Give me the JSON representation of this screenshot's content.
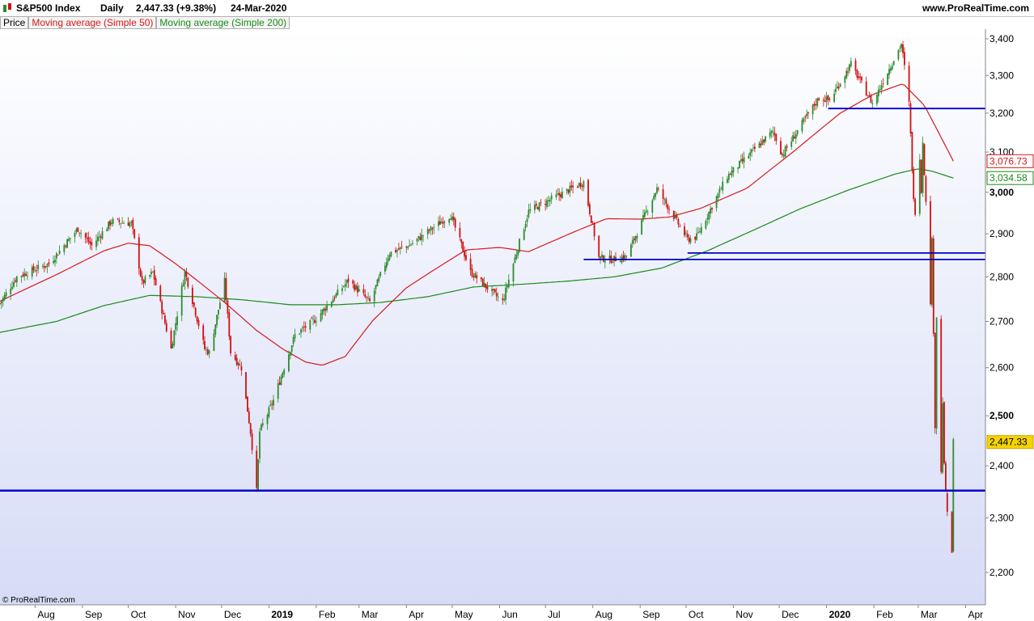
{
  "header": {
    "symbol": "S&P500 Index",
    "interval": "Daily",
    "last_change": "2,447.33 (+9.38%)",
    "date": "24-Mar-2020",
    "website": "www.ProRealTime.com"
  },
  "legend": [
    {
      "label": "Price",
      "color": "#000000"
    },
    {
      "label": "Moving average (Simple 50)",
      "color": "#d7191c"
    },
    {
      "label": "Moving average (Simple 200)",
      "color": "#1a8a1a"
    }
  ],
  "watermark": "© ProRealTime.com",
  "colors": {
    "up": "#2e8b2e",
    "down": "#d01010",
    "ma50": "#d7191c",
    "ma200": "#1a8a1a",
    "hline": "#0000cc"
  },
  "chart_data": {
    "type": "line",
    "y_scale": "log",
    "ylim": [
      2160,
      3450
    ],
    "x_range": [
      "2018-07-09",
      "2020-04-14"
    ],
    "y_ticks": [
      {
        "value": 2200,
        "label": "2,200"
      },
      {
        "value": 2300,
        "label": "2,300"
      },
      {
        "value": 2400,
        "label": "2,400"
      },
      {
        "value": 2500,
        "label": "2,500",
        "bold": true
      },
      {
        "value": 2600,
        "label": "2,600"
      },
      {
        "value": 2700,
        "label": "2,700"
      },
      {
        "value": 2800,
        "label": "2,800"
      },
      {
        "value": 2900,
        "label": "2,900"
      },
      {
        "value": 3000,
        "label": "3,000",
        "bold": true
      },
      {
        "value": 3100,
        "label": "3,100"
      },
      {
        "value": 3200,
        "label": "3,200"
      },
      {
        "value": 3300,
        "label": "3,300"
      },
      {
        "value": 3400,
        "label": "3,400"
      }
    ],
    "x_ticks": [
      {
        "date": "2018-08-01",
        "label": "Aug"
      },
      {
        "date": "2018-09-01",
        "label": "Sep"
      },
      {
        "date": "2018-10-01",
        "label": "Oct"
      },
      {
        "date": "2018-11-01",
        "label": "Nov"
      },
      {
        "date": "2018-12-01",
        "label": "Dec"
      },
      {
        "date": "2019-01-01",
        "label": "2019",
        "bold": true
      },
      {
        "date": "2019-02-01",
        "label": "Feb"
      },
      {
        "date": "2019-03-01",
        "label": "Mar"
      },
      {
        "date": "2019-04-01",
        "label": "Apr"
      },
      {
        "date": "2019-05-01",
        "label": "May"
      },
      {
        "date": "2019-06-01",
        "label": "Jun"
      },
      {
        "date": "2019-07-01",
        "label": "Jul"
      },
      {
        "date": "2019-08-01",
        "label": "Aug"
      },
      {
        "date": "2019-09-01",
        "label": "Sep"
      },
      {
        "date": "2019-10-01",
        "label": "Oct"
      },
      {
        "date": "2019-11-01",
        "label": "Nov"
      },
      {
        "date": "2019-12-01",
        "label": "Dec"
      },
      {
        "date": "2020-01-01",
        "label": "2020",
        "bold": true
      },
      {
        "date": "2020-02-01",
        "label": "Feb"
      },
      {
        "date": "2020-03-01",
        "label": "Mar"
      },
      {
        "date": "2020-04-01",
        "label": "Apr"
      }
    ],
    "price_anchors": [
      [
        "2018-07-09",
        2740
      ],
      [
        "2018-07-20",
        2800
      ],
      [
        "2018-08-10",
        2830
      ],
      [
        "2018-08-29",
        2912
      ],
      [
        "2018-09-07",
        2872
      ],
      [
        "2018-09-20",
        2930
      ],
      [
        "2018-10-03",
        2925
      ],
      [
        "2018-10-10",
        2785
      ],
      [
        "2018-10-17",
        2810
      ],
      [
        "2018-10-29",
        2640
      ],
      [
        "2018-11-07",
        2812
      ],
      [
        "2018-11-20",
        2640
      ],
      [
        "2018-11-23",
        2632
      ],
      [
        "2018-12-03",
        2790
      ],
      [
        "2018-12-07",
        2633
      ],
      [
        "2018-12-14",
        2600
      ],
      [
        "2018-12-20",
        2467
      ],
      [
        "2018-12-24",
        2351
      ],
      [
        "2018-12-26",
        2468
      ],
      [
        "2019-01-04",
        2532
      ],
      [
        "2019-01-18",
        2670
      ],
      [
        "2019-02-01",
        2706
      ],
      [
        "2019-02-22",
        2792
      ],
      [
        "2019-03-08",
        2743
      ],
      [
        "2019-03-21",
        2855
      ],
      [
        "2019-04-03",
        2873
      ],
      [
        "2019-04-30",
        2945
      ],
      [
        "2019-05-13",
        2811
      ],
      [
        "2019-05-31",
        2752
      ],
      [
        "2019-06-03",
        2744
      ],
      [
        "2019-06-20",
        2954
      ],
      [
        "2019-07-26",
        3025
      ],
      [
        "2019-08-05",
        2844
      ],
      [
        "2019-08-14",
        2840
      ],
      [
        "2019-08-23",
        2847
      ],
      [
        "2019-09-12",
        3009
      ],
      [
        "2019-10-02",
        2887
      ],
      [
        "2019-10-08",
        2893
      ],
      [
        "2019-10-28",
        3039
      ],
      [
        "2019-11-27",
        3153
      ],
      [
        "2019-12-03",
        3093
      ],
      [
        "2019-12-27",
        3240
      ],
      [
        "2020-01-03",
        3234
      ],
      [
        "2020-01-17",
        3330
      ],
      [
        "2020-01-31",
        3225
      ],
      [
        "2020-02-19",
        3386
      ],
      [
        "2020-02-24",
        3225
      ],
      [
        "2020-02-27",
        2978
      ],
      [
        "2020-02-28",
        2954
      ],
      [
        "2020-03-02",
        3090
      ],
      [
        "2020-03-03",
        3003
      ],
      [
        "2020-03-04",
        3130
      ],
      [
        "2020-03-06",
        2972
      ],
      [
        "2020-03-09",
        2746
      ],
      [
        "2020-03-10",
        2882
      ],
      [
        "2020-03-12",
        2480
      ],
      [
        "2020-03-13",
        2711
      ],
      [
        "2020-03-16",
        2386
      ],
      [
        "2020-03-17",
        2529
      ],
      [
        "2020-03-18",
        2398
      ],
      [
        "2020-03-20",
        2305
      ],
      [
        "2020-03-23",
        2237
      ],
      [
        "2020-03-24",
        2447
      ]
    ],
    "ma50_anchors": [
      [
        "2018-07-09",
        2745
      ],
      [
        "2018-08-15",
        2805
      ],
      [
        "2018-09-15",
        2860
      ],
      [
        "2018-10-01",
        2878
      ],
      [
        "2018-10-15",
        2872
      ],
      [
        "2018-11-01",
        2830
      ],
      [
        "2018-12-01",
        2748
      ],
      [
        "2018-12-24",
        2680
      ],
      [
        "2019-01-10",
        2640
      ],
      [
        "2019-01-25",
        2612
      ],
      [
        "2019-02-05",
        2605
      ],
      [
        "2019-02-20",
        2624
      ],
      [
        "2019-03-10",
        2702
      ],
      [
        "2019-04-01",
        2775
      ],
      [
        "2019-04-20",
        2818
      ],
      [
        "2019-05-10",
        2862
      ],
      [
        "2019-06-01",
        2868
      ],
      [
        "2019-06-20",
        2858
      ],
      [
        "2019-07-20",
        2905
      ],
      [
        "2019-08-10",
        2936
      ],
      [
        "2019-09-01",
        2935
      ],
      [
        "2019-09-20",
        2940
      ],
      [
        "2019-10-10",
        2960
      ],
      [
        "2019-11-10",
        3010
      ],
      [
        "2019-12-10",
        3100
      ],
      [
        "2020-01-10",
        3200
      ],
      [
        "2020-02-01",
        3250
      ],
      [
        "2020-02-20",
        3278
      ],
      [
        "2020-03-05",
        3220
      ],
      [
        "2020-03-24",
        3077
      ]
    ],
    "ma200_anchors": [
      [
        "2018-07-09",
        2676
      ],
      [
        "2018-08-15",
        2700
      ],
      [
        "2018-09-15",
        2735
      ],
      [
        "2018-10-15",
        2758
      ],
      [
        "2018-11-15",
        2755
      ],
      [
        "2018-12-15",
        2748
      ],
      [
        "2019-01-15",
        2737
      ],
      [
        "2019-02-15",
        2737
      ],
      [
        "2019-03-15",
        2742
      ],
      [
        "2019-04-15",
        2755
      ],
      [
        "2019-05-15",
        2777
      ],
      [
        "2019-06-15",
        2783
      ],
      [
        "2019-07-15",
        2790
      ],
      [
        "2019-08-15",
        2800
      ],
      [
        "2019-09-15",
        2820
      ],
      [
        "2019-10-15",
        2860
      ],
      [
        "2019-11-15",
        2910
      ],
      [
        "2019-12-15",
        2960
      ],
      [
        "2020-01-15",
        3005
      ],
      [
        "2020-02-15",
        3045
      ],
      [
        "2020-03-01",
        3058
      ],
      [
        "2020-03-10",
        3052
      ],
      [
        "2020-03-24",
        3035
      ]
    ],
    "horizontal_lines": [
      {
        "value": 2352,
        "from": "2018-07-09",
        "to": "2020-04-14"
      },
      {
        "value": 2840,
        "from": "2019-07-26",
        "to": "2020-04-14"
      },
      {
        "value": 2855,
        "from": "2019-10-02",
        "to": "2020-04-14"
      },
      {
        "value": 3212,
        "from": "2020-01-02",
        "to": "2020-04-14"
      }
    ],
    "last_values": [
      {
        "label": "3,076.73",
        "value": 3077,
        "series": "ma50"
      },
      {
        "label": "3,034.58",
        "value": 3035,
        "series": "ma200"
      },
      {
        "label": "2,447.33",
        "value": 2447,
        "series": "price"
      }
    ]
  }
}
